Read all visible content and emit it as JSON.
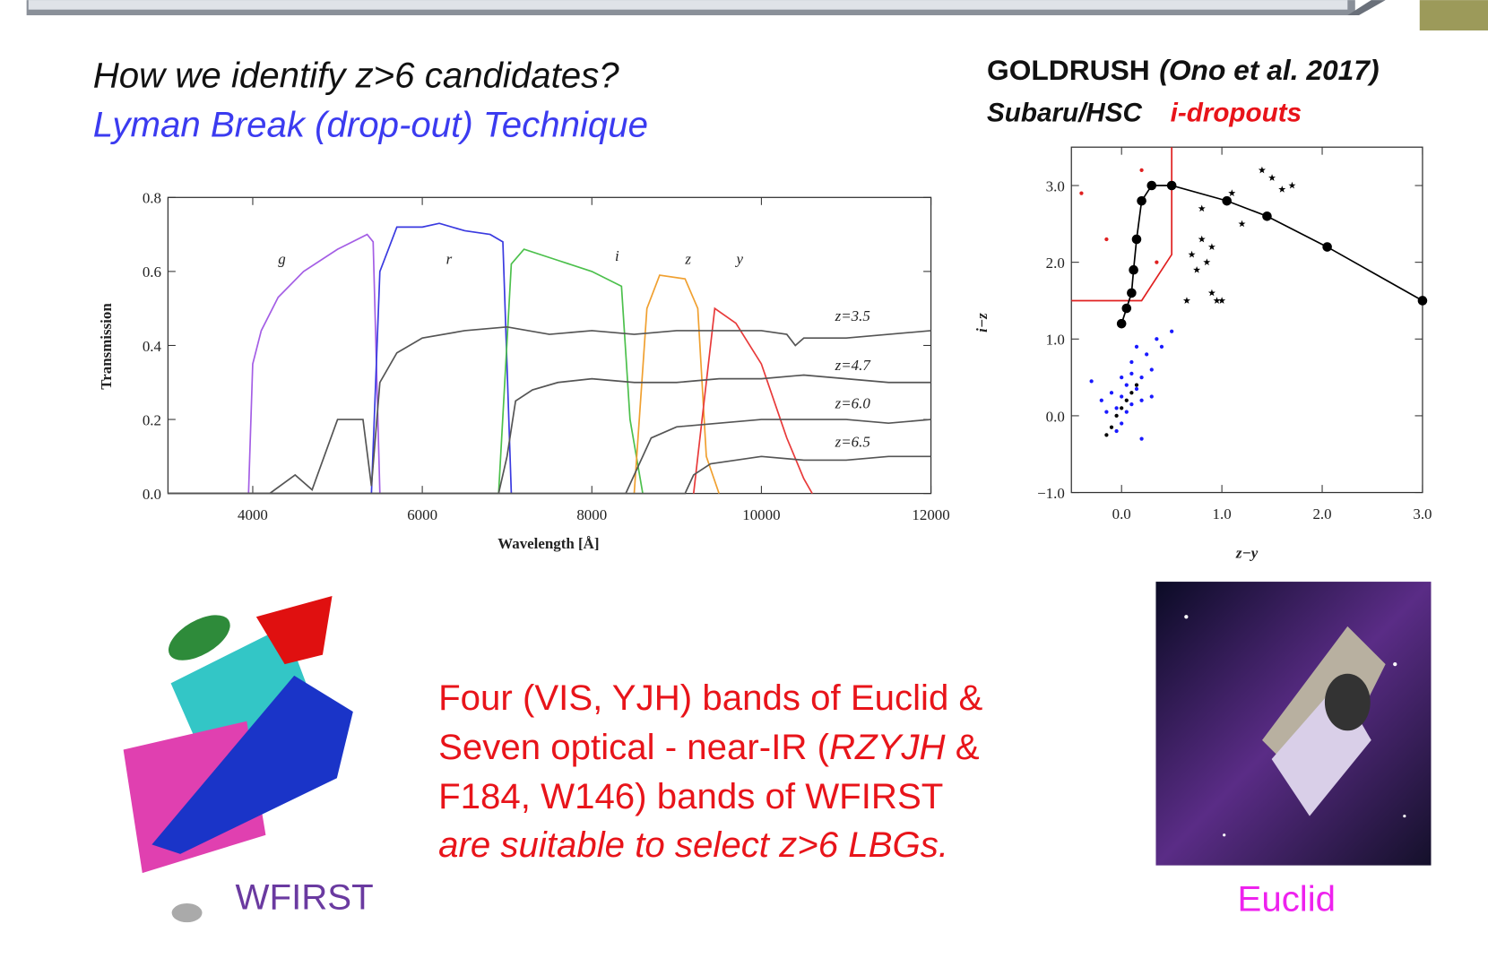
{
  "slide": {
    "heading": "How we identify z>6 candidates?",
    "subheading": "Lyman Break (drop-out) Technique",
    "survey": "GOLDRUSH",
    "reference": "(Ono et al. 2017)",
    "instrument": "Subaru/HSC",
    "selection": "i-dropouts",
    "body": [
      [
        "Four (VIS, YJH) bands of Euclid &"
      ],
      [
        "Seven optical - near-IR (",
        "RZYJH",
        " &"
      ],
      [
        "F184, W146) bands of WFIRST"
      ],
      [
        "are suitable to select z>6 LBGs."
      ]
    ],
    "wfirst_caption": "WFIRST",
    "euclid_caption": "Euclid"
  },
  "chart_data": [
    {
      "type": "line",
      "x_label": "Wavelength [Å]",
      "y_label": "Transmission",
      "xlim": [
        3000,
        12000
      ],
      "xticks": [
        4000,
        6000,
        8000,
        10000,
        12000
      ],
      "ylim": [
        0,
        0.8
      ],
      "yticks": [
        {
          "value": 0,
          "label": "0.0"
        },
        0.2,
        0.4,
        0.6,
        0.8
      ],
      "series": [
        {
          "name": "g",
          "color": "#a45ee5",
          "x": [
            3950,
            4000,
            4100,
            4300,
            4600,
            5000,
            5350,
            5420,
            5500
          ],
          "values": [
            0,
            0.35,
            0.44,
            0.53,
            0.6,
            0.66,
            0.7,
            0.68,
            0
          ]
        },
        {
          "name": "r",
          "color": "#3a3ae0",
          "x": [
            5400,
            5500,
            5600,
            5700,
            6000,
            6200,
            6500,
            6800,
            6950,
            7050
          ],
          "values": [
            0,
            0.6,
            0.66,
            0.72,
            0.72,
            0.73,
            0.71,
            0.7,
            0.68,
            0
          ]
        },
        {
          "name": "i",
          "color": "#4cc04c",
          "x": [
            6900,
            7050,
            7200,
            7600,
            8000,
            8350,
            8450,
            8600
          ],
          "values": [
            0,
            0.62,
            0.66,
            0.63,
            0.6,
            0.56,
            0.2,
            0
          ]
        },
        {
          "name": "z",
          "color": "#f0a030",
          "x": [
            8500,
            8650,
            8800,
            9100,
            9250,
            9350,
            9500
          ],
          "values": [
            0,
            0.5,
            0.59,
            0.58,
            0.5,
            0.1,
            0
          ]
        },
        {
          "name": "y",
          "color": "#e83a3a",
          "x": [
            9200,
            9300,
            9450,
            9700,
            10000,
            10300,
            10500,
            10600
          ],
          "values": [
            0,
            0.2,
            0.5,
            0.46,
            0.35,
            0.15,
            0.04,
            0
          ]
        },
        {
          "name": "z=3.5",
          "color": "#555555",
          "x": [
            3000,
            4200,
            4500,
            4700,
            5000,
            5300,
            5400,
            5500,
            5700,
            6000,
            6500,
            7000,
            7500,
            8000,
            8500,
            9000,
            9500,
            10000,
            10300,
            10400,
            10500,
            11000,
            11500,
            12000
          ],
          "values": [
            0,
            0,
            0.05,
            0.01,
            0.2,
            0.2,
            0.02,
            0.3,
            0.38,
            0.42,
            0.44,
            0.45,
            0.43,
            0.44,
            0.43,
            0.44,
            0.44,
            0.44,
            0.43,
            0.4,
            0.42,
            0.42,
            0.43,
            0.44
          ]
        },
        {
          "name": "z=4.7",
          "color": "#555555",
          "x": [
            3000,
            6900,
            7000,
            7100,
            7300,
            7600,
            8000,
            8500,
            9000,
            9500,
            10000,
            10500,
            11000,
            11500,
            12000
          ],
          "values": [
            0,
            0,
            0.1,
            0.25,
            0.28,
            0.3,
            0.31,
            0.3,
            0.3,
            0.31,
            0.31,
            0.32,
            0.31,
            0.3,
            0.3
          ]
        },
        {
          "name": "z=6.0",
          "color": "#555555",
          "x": [
            3000,
            8400,
            8500,
            8700,
            9000,
            9500,
            10000,
            10500,
            11000,
            11500,
            12000
          ],
          "values": [
            0,
            0,
            0.05,
            0.15,
            0.18,
            0.19,
            0.2,
            0.2,
            0.2,
            0.19,
            0.2
          ]
        },
        {
          "name": "z=6.5",
          "color": "#555555",
          "x": [
            3000,
            9100,
            9200,
            9400,
            9700,
            10000,
            10500,
            11000,
            11500,
            12000
          ],
          "values": [
            0,
            0,
            0.05,
            0.08,
            0.09,
            0.1,
            0.09,
            0.09,
            0.1,
            0.1
          ]
        }
      ]
    },
    {
      "type": "scatter",
      "x_label": "z−y",
      "y_label": "i−z",
      "xlim": [
        -0.5,
        3
      ],
      "xticks": [
        {
          "value": 0,
          "label": "0.0"
        },
        {
          "value": 1,
          "label": "1.0"
        },
        {
          "value": 2,
          "label": "2.0"
        },
        {
          "value": 3,
          "label": "3.0"
        }
      ],
      "ylim": [
        -1,
        3.5
      ],
      "yticks": [
        {
          "value": -1,
          "label": "−1.0"
        },
        {
          "value": 0,
          "label": "0.0"
        },
        {
          "value": 1,
          "label": "1.0"
        },
        {
          "value": 2,
          "label": "2.0"
        },
        {
          "value": 3,
          "label": "3.0"
        }
      ],
      "series": [
        {
          "style": "point",
          "color": "#1a1aff",
          "x": [
            -0.3,
            -0.2,
            -0.15,
            -0.1,
            -0.05,
            0,
            0,
            0.05,
            0.1,
            0.1,
            0.15,
            0.2,
            0.2,
            0.25,
            0.3,
            0.35,
            0.4,
            -0.05,
            0.05,
            0.15,
            0.1,
            0.3,
            0.5,
            0.2,
            0.0
          ],
          "values": [
            0.45,
            0.2,
            0.05,
            0.3,
            0.1,
            0.5,
            -0.1,
            0.4,
            0.7,
            0.15,
            0.9,
            0.5,
            0.2,
            0.8,
            0.6,
            1.0,
            0.9,
            -0.2,
            0.05,
            0.35,
            0.55,
            0.25,
            1.1,
            -0.3,
            0.25
          ]
        },
        {
          "style": "point",
          "color": "#000000",
          "x": [
            -0.15,
            -0.1,
            -0.05,
            0,
            0.05,
            0.1,
            0.15
          ],
          "values": [
            -0.25,
            -0.15,
            0,
            0.1,
            0.2,
            0.3,
            0.4
          ]
        },
        {
          "style": "point",
          "color": "#e02020",
          "x": [
            -0.4,
            0.2,
            -0.15,
            0.35
          ],
          "values": [
            2.9,
            3.2,
            2.3,
            2.0
          ]
        },
        {
          "style": "star",
          "color": "#000000",
          "x": [
            0.7,
            0.75,
            0.8,
            0.85,
            0.9,
            0.95,
            1.0,
            0.8,
            1.1,
            1.2,
            1.4,
            1.5,
            1.6,
            1.7,
            0.65,
            0.9
          ],
          "values": [
            2.1,
            1.9,
            2.3,
            2.0,
            1.6,
            1.5,
            1.5,
            2.7,
            2.9,
            2.5,
            3.2,
            3.1,
            2.95,
            3.0,
            1.5,
            2.2
          ]
        },
        {
          "style": "line",
          "color": "#e02020",
          "x": [
            -0.5,
            0.2,
            0.5,
            0.5
          ],
          "values": [
            1.5,
            1.5,
            2.1,
            3.5
          ]
        },
        {
          "style": "line-marker",
          "color": "#000000",
          "x": [
            0,
            0.05,
            0.1,
            0.12,
            0.15,
            0.2,
            0.3,
            0.5,
            1.05,
            1.45,
            2.05,
            3.0
          ],
          "values": [
            1.2,
            1.4,
            1.6,
            1.9,
            2.3,
            2.8,
            3.0,
            3.0,
            2.8,
            2.6,
            2.2,
            1.5
          ]
        }
      ]
    }
  ]
}
